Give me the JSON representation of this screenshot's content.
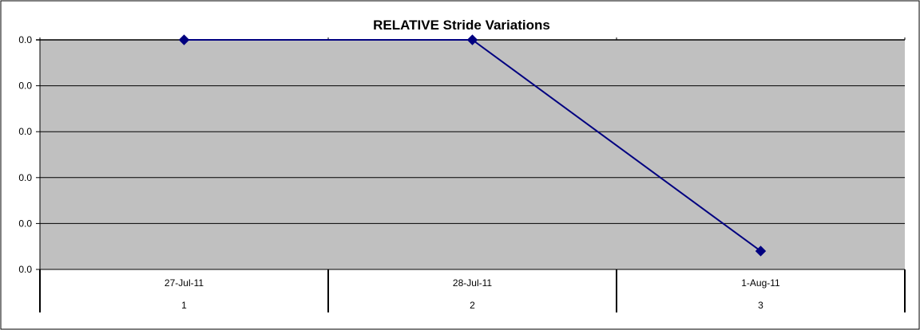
{
  "chart_data": {
    "type": "line",
    "title": "RELATIVE Stride Variations",
    "xlabel": "",
    "ylabel": "",
    "categories": [
      "27-Jul-11",
      "28-Jul-11",
      "1-Aug-11"
    ],
    "category_indices": [
      "1",
      "2",
      "3"
    ],
    "y_tick_labels": [
      "0.0",
      "0.0",
      "0.0",
      "0.0",
      "0.0",
      "0.0"
    ],
    "ylim": [
      -0.05,
      0.0
    ],
    "grid": true,
    "legend": "none",
    "series": [
      {
        "values": [
          0.0,
          0.0,
          -0.046
        ]
      }
    ],
    "colors": {
      "plot_background": "#c0c0c0",
      "line": "#000080",
      "gridline": "#000000",
      "frame": "#000000"
    }
  }
}
